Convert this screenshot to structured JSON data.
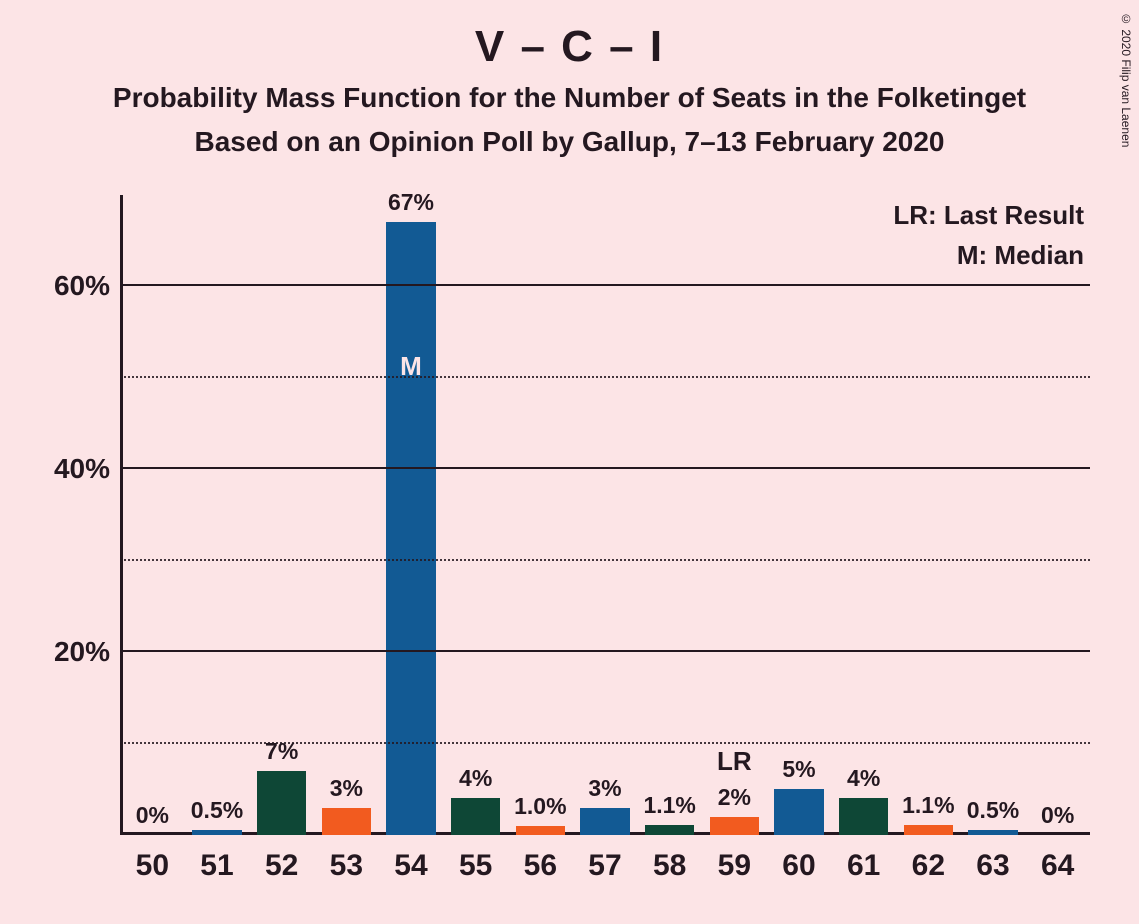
{
  "background_color": "#fce4e6",
  "text_color": "#241820",
  "title": "V – C – I",
  "subtitle1": "Probability Mass Function for the Number of Seats in the Folketinget",
  "subtitle2": "Based on an Opinion Poll by Gallup, 7–13 February 2020",
  "copyright": "© 2020 Filip van Laenen",
  "legend": {
    "lr": "LR: Last Result",
    "m": "M: Median"
  },
  "chart": {
    "type": "bar",
    "y_max_percent": 70,
    "y_major_ticks": [
      20,
      40,
      60
    ],
    "y_minor_ticks": [
      10,
      30,
      50
    ],
    "bar_colors": {
      "blue": "#125a94",
      "green": "#0e4736",
      "orange": "#f25b1f"
    },
    "bars": [
      {
        "x": "50",
        "value": 0,
        "label": "0%",
        "color": "blue"
      },
      {
        "x": "51",
        "value": 0.5,
        "label": "0.5%",
        "color": "blue"
      },
      {
        "x": "52",
        "value": 7,
        "label": "7%",
        "color": "green"
      },
      {
        "x": "53",
        "value": 3,
        "label": "3%",
        "color": "orange"
      },
      {
        "x": "54",
        "value": 67,
        "label": "67%",
        "color": "blue",
        "marker": "M",
        "marker_in_bar": true
      },
      {
        "x": "55",
        "value": 4,
        "label": "4%",
        "color": "green"
      },
      {
        "x": "56",
        "value": 1.0,
        "label": "1.0%",
        "color": "orange"
      },
      {
        "x": "57",
        "value": 3,
        "label": "3%",
        "color": "blue"
      },
      {
        "x": "58",
        "value": 1.1,
        "label": "1.1%",
        "color": "green"
      },
      {
        "x": "59",
        "value": 2,
        "label": "2%",
        "color": "orange",
        "marker": "LR",
        "marker_in_bar": false
      },
      {
        "x": "60",
        "value": 5,
        "label": "5%",
        "color": "blue"
      },
      {
        "x": "61",
        "value": 4,
        "label": "4%",
        "color": "green"
      },
      {
        "x": "62",
        "value": 1.1,
        "label": "1.1%",
        "color": "orange"
      },
      {
        "x": "63",
        "value": 0.5,
        "label": "0.5%",
        "color": "blue"
      },
      {
        "x": "64",
        "value": 0,
        "label": "0%",
        "color": "blue"
      }
    ],
    "value_label_fontsize": 23,
    "xtick_fontsize": 30,
    "ytick_fontsize": 28,
    "bar_width_ratio": 0.76
  }
}
